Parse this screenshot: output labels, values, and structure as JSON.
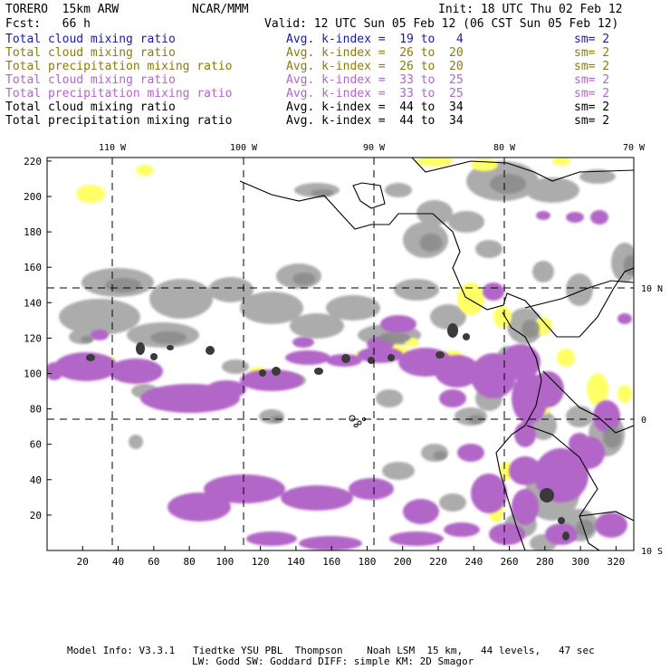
{
  "header": {
    "model": "TORERO  15km ARW",
    "org": "NCAR/MMM",
    "init": "Init: 18 UTC Thu 02 Feb 12",
    "fcst_label": "Fcst:   66 h",
    "valid": "Valid: 12 UTC Sun 05 Feb 12 (06 CST Sun 05 Feb 12)"
  },
  "legend": [
    {
      "field": "Total cloud mixing ratio",
      "kindex": "Avg. k-index =  19 to   4",
      "sm": "sm= 2",
      "color": "#1a1aa8"
    },
    {
      "field": "Total cloud mixing ratio",
      "kindex": "Avg. k-index =  26 to  20",
      "sm": "sm= 2",
      "color": "#8a7a10"
    },
    {
      "field": "Total precipitation mixing ratio",
      "kindex": "Avg. k-index =  26 to  20",
      "sm": "sm= 2",
      "color": "#8a7a10"
    },
    {
      "field": "Total cloud mixing ratio",
      "kindex": "Avg. k-index =  33 to  25",
      "sm": "sm= 2",
      "color": "#b266c8"
    },
    {
      "field": "Total precipitation mixing ratio",
      "kindex": "Avg. k-index =  33 to  25",
      "sm": "sm= 2",
      "color": "#b266c8"
    },
    {
      "field": "Total cloud mixing ratio",
      "kindex": "Avg. k-index =  44 to  34",
      "sm": "sm= 2",
      "color": "#000000"
    },
    {
      "field": "Total precipitation mixing ratio",
      "kindex": "Avg. k-index =  44 to  34",
      "sm": "sm= 2",
      "color": "#000000"
    }
  ],
  "map": {
    "lon_labels": [
      "110 W",
      "100 W",
      "90 W",
      "80 W",
      "70 W"
    ],
    "lat_labels": [
      "10 N",
      "0",
      "10 S"
    ],
    "x_ticks": [
      "20",
      "40",
      "60",
      "80",
      "100",
      "120",
      "140",
      "160",
      "180",
      "200",
      "220",
      "240",
      "260",
      "280",
      "300",
      "320"
    ],
    "y_ticks": [
      "20",
      "40",
      "60",
      "80",
      "100",
      "120",
      "140",
      "160",
      "180",
      "200",
      "220"
    ],
    "colors": {
      "gray": "#a8a8a8",
      "dark": "#3a3a3a",
      "yellow": "#ffff66",
      "purple": "#b266c8",
      "coast": "#000000"
    }
  },
  "footer": {
    "line1": "Model Info: V3.3.1   Tiedtke YSU PBL  Thompson    Noah LSM  15 km,   44 levels,   47 sec",
    "line2": "LW: Godd SW: Goddard DIFF: simple KM: 2D Smagor"
  }
}
